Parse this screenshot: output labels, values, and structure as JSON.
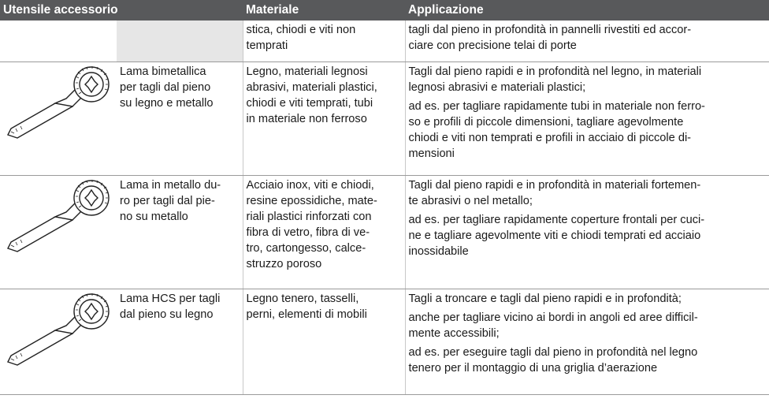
{
  "table": {
    "header": [
      "Utensile accessorio",
      "Materiale",
      "Applicazione"
    ],
    "rows": [
      {
        "description": [],
        "material": [
          "stica, chiodi e viti non",
          "temprati"
        ],
        "application": [
          [
            "tagli dal pieno in profondità in pannelli rivestiti ed accor-",
            "ciare con precisione telai di porte"
          ]
        ]
      },
      {
        "description": [
          "Lama bimetallica",
          "per tagli dal pieno",
          "su legno e metallo"
        ],
        "material": [
          "Legno, materiali legnosi",
          "abrasivi, materiali plastici,",
          "chiodi e viti temprati, tubi",
          "in materiale non ferroso"
        ],
        "application": [
          [
            "Tagli dal pieno rapidi e in profondità nel legno, in materiali",
            "legnosi abrasivi e materiali plastici;"
          ],
          [
            "ad es. per tagliare rapidamente tubi in materiale non ferro-",
            "so e profili di piccole dimensioni, tagliare agevolmente",
            "chiodi e viti non temprati e profili in acciaio di piccole di-",
            "mensioni"
          ]
        ]
      },
      {
        "description": [
          "Lama in metallo du-",
          "ro per tagli dal pie-",
          "no su metallo"
        ],
        "material": [
          "Acciaio inox, viti e chiodi,",
          "resine epossidiche, mate-",
          "riali plastici rinforzati con",
          "fibra di vetro, fibra di ve-",
          "tro, cartongesso, calce-",
          "struzzo poroso"
        ],
        "application": [
          [
            "Tagli dal pieno rapidi e in profondità in materiali fortemen-",
            "te abrasivi o nel metallo;"
          ],
          [
            "ad es. per tagliare rapidamente coperture frontali per cuci-",
            "ne e tagliare agevolmente viti e chiodi temprati ed acciaio",
            "inossidabile"
          ]
        ]
      },
      {
        "description": [
          "Lama HCS per tagli",
          "dal pieno su legno"
        ],
        "material": [
          "Legno tenero, tasselli,",
          "perni, elementi di mobili"
        ],
        "application": [
          [
            "Tagli a troncare e tagli dal pieno rapidi e in profondità;"
          ],
          [
            "anche per tagliare vicino ai bordi in angoli ed aree difficil-",
            "mente accessibili;"
          ],
          [
            "ad es. per eseguire tagli dal pieno in profondità nel legno",
            "tenero per il montaggio di una griglia d’aerazione"
          ]
        ]
      }
    ]
  }
}
